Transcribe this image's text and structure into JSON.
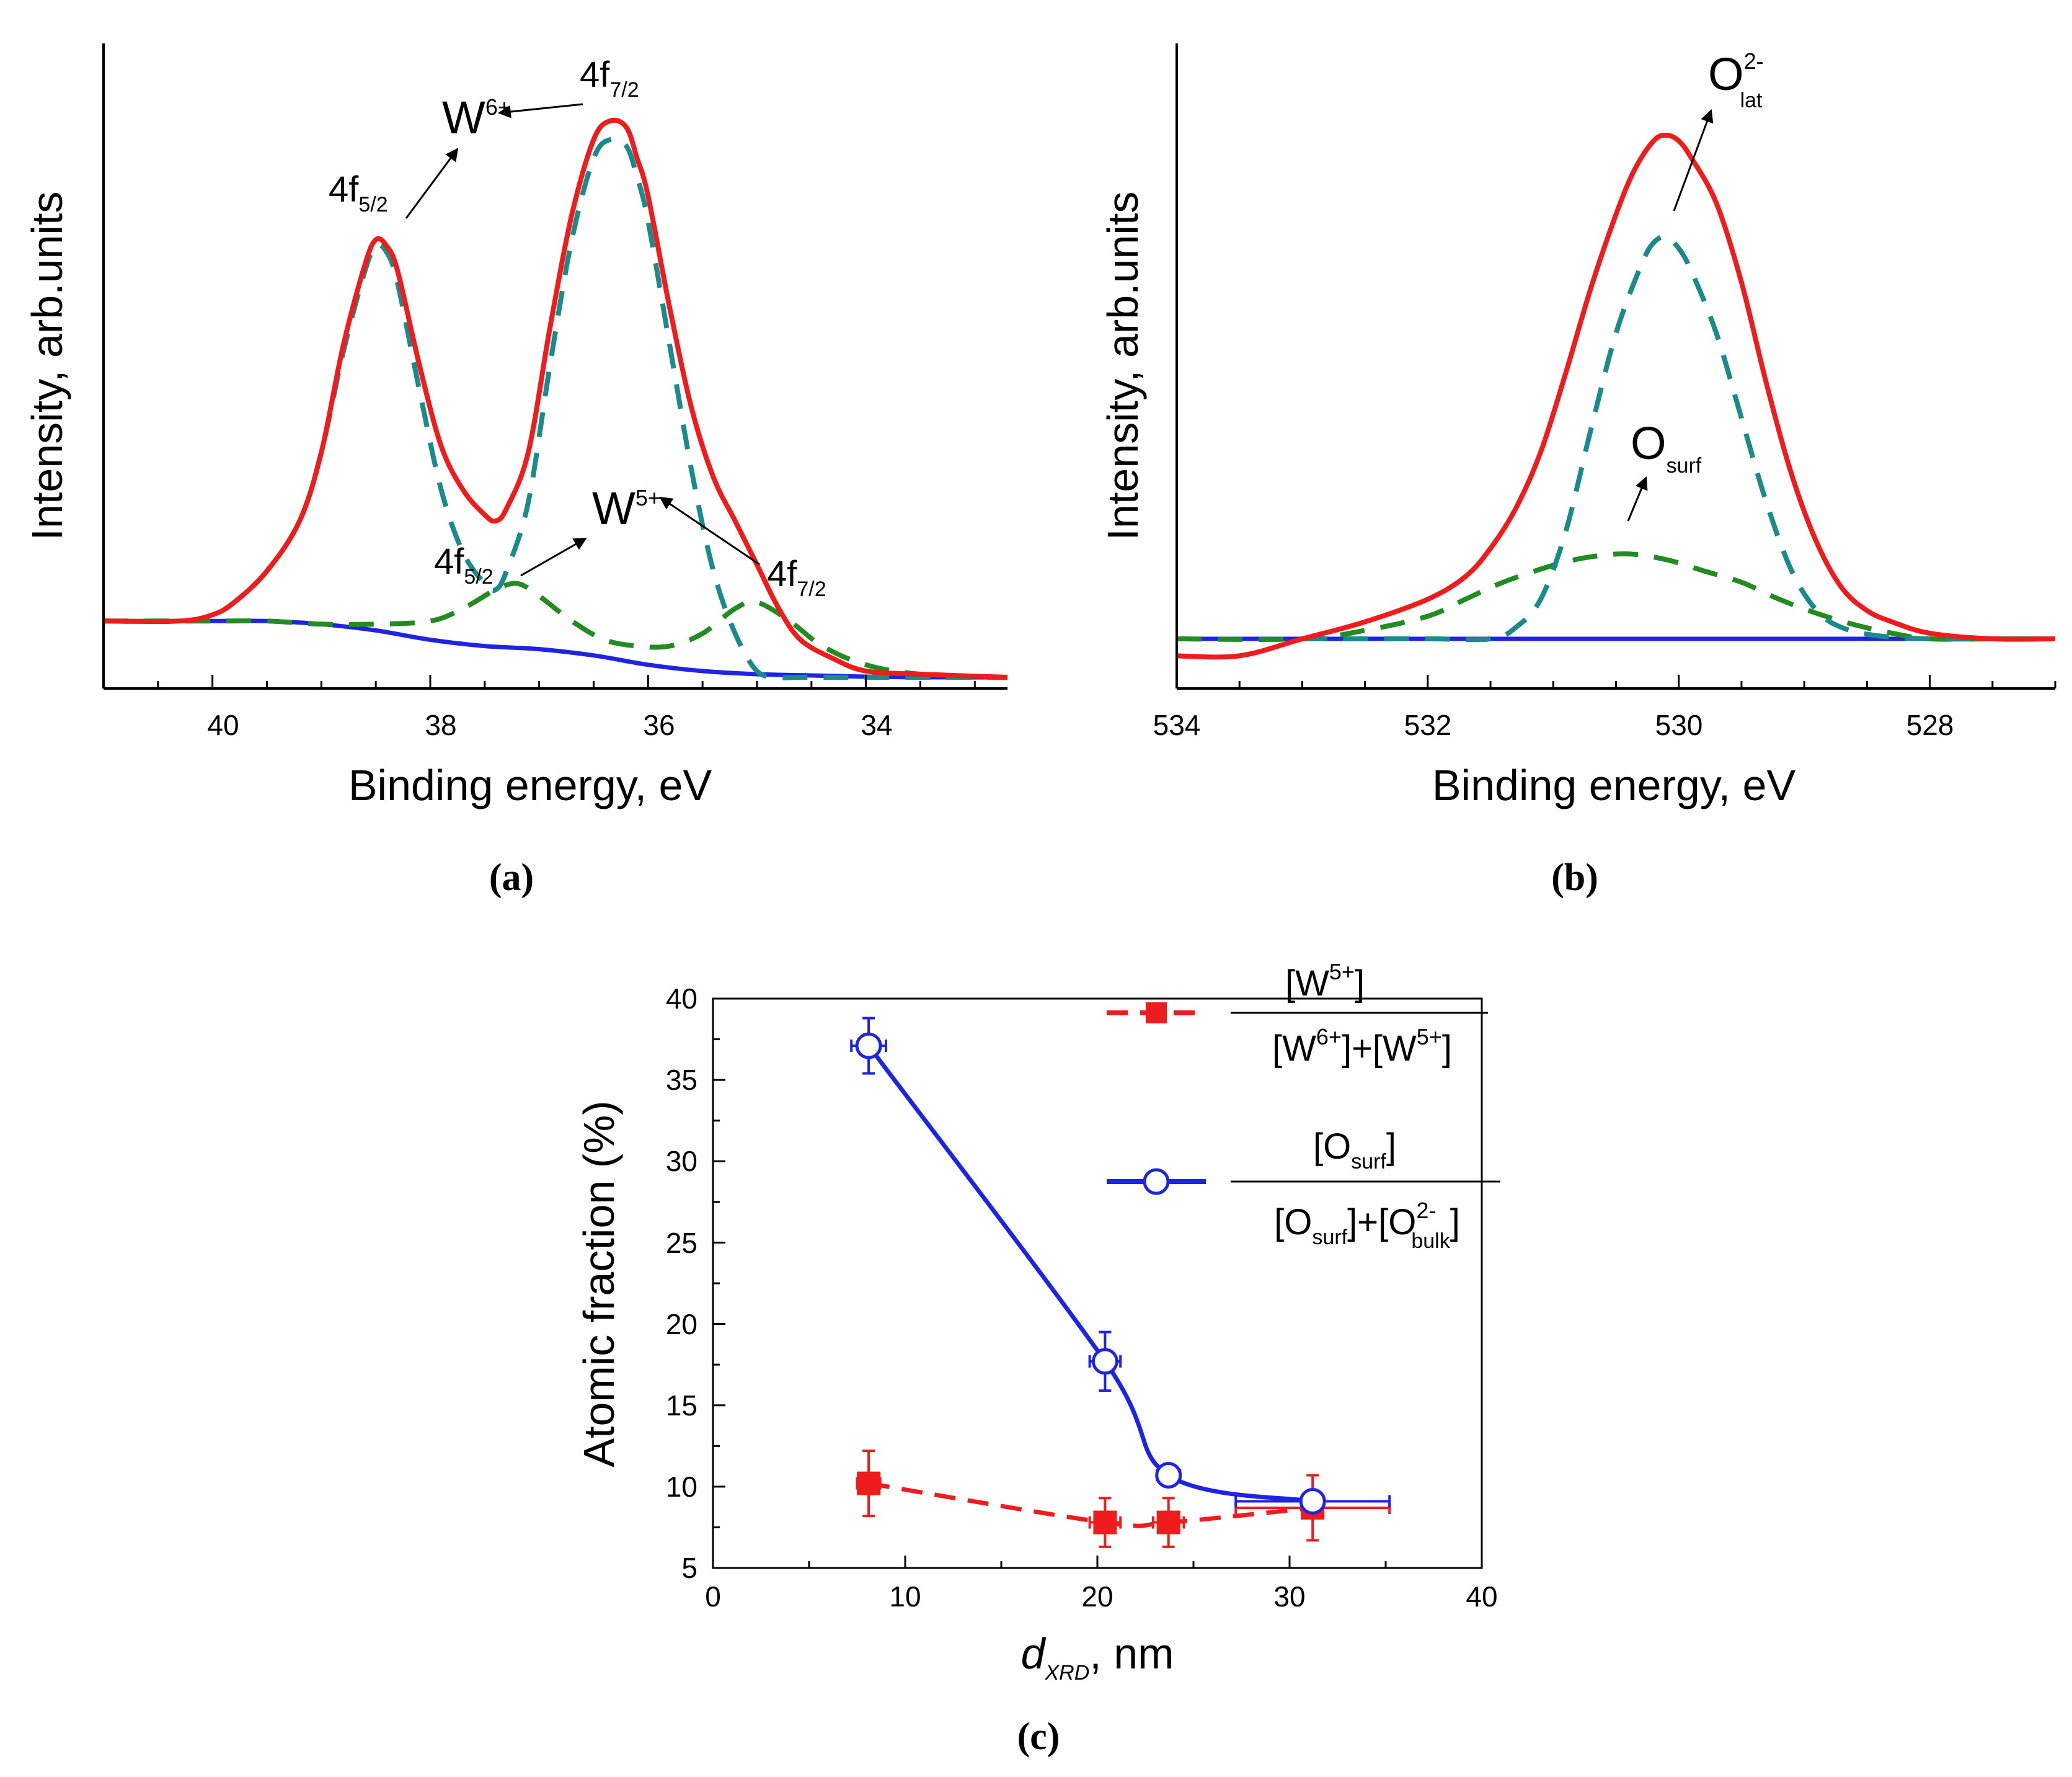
{
  "colors": {
    "envelope": "#ee1c1c",
    "w6_component": "#1a8a8a",
    "w5_component": "#228b22",
    "background": "#1f24e0",
    "w5_series": "#ee1c1c",
    "o_series": "#1f24e0"
  },
  "chart_data": [
    {
      "panel": "a",
      "panel_label": "(a)",
      "type": "line",
      "title": "",
      "xlabel": "Binding energy, eV",
      "ylabel": "Intensity, arb.units",
      "xlim": [
        41,
        32.7
      ],
      "x_reversed": true,
      "ylim": [
        0,
        1
      ],
      "xticks": [
        "40",
        "38",
        "36",
        "34"
      ],
      "annotations": {
        "w6": "W",
        "w6_sup": "6+",
        "w5": "W",
        "w5_sup": "5+",
        "f72": "4f",
        "f72_sub": "7/2",
        "f52": "4f",
        "f52_sub": "5/2"
      },
      "series": [
        {
          "name": "envelope",
          "x": [
            41,
            40.3,
            40,
            39.8,
            39.5,
            39.2,
            39,
            38.8,
            38.6,
            38.5,
            38.4,
            38.3,
            38.1,
            37.9,
            37.7,
            37.5,
            37.4,
            37.3,
            37.1,
            36.9,
            36.7,
            36.5,
            36.35,
            36.2,
            36.1,
            36,
            35.8,
            35.6,
            35.4,
            35.2,
            35,
            34.8,
            34.6,
            34.3,
            34,
            33.5,
            32.7
          ],
          "y": [
            0.09,
            0.09,
            0.1,
            0.12,
            0.17,
            0.25,
            0.36,
            0.53,
            0.66,
            0.7,
            0.69,
            0.65,
            0.5,
            0.37,
            0.3,
            0.26,
            0.25,
            0.27,
            0.36,
            0.56,
            0.74,
            0.86,
            0.89,
            0.88,
            0.83,
            0.77,
            0.59,
            0.43,
            0.32,
            0.25,
            0.18,
            0.11,
            0.06,
            0.03,
            0.01,
            0.005,
            0.0
          ]
        },
        {
          "name": "W6+ component",
          "x": [
            41,
            40.3,
            40,
            39.8,
            39.5,
            39.2,
            39,
            38.8,
            38.6,
            38.5,
            38.4,
            38.3,
            38.1,
            37.9,
            37.7,
            37.5,
            37.4,
            37.3,
            37.1,
            36.9,
            36.7,
            36.5,
            36.35,
            36.2,
            36.1,
            36,
            35.8,
            35.6,
            35.4,
            35.2,
            35,
            34.8,
            34.6,
            34.3,
            34,
            33.5,
            32.7
          ],
          "y": [
            0.09,
            0.09,
            0.1,
            0.12,
            0.17,
            0.25,
            0.36,
            0.52,
            0.65,
            0.69,
            0.68,
            0.63,
            0.46,
            0.3,
            0.2,
            0.15,
            0.14,
            0.17,
            0.28,
            0.5,
            0.7,
            0.83,
            0.86,
            0.85,
            0.8,
            0.73,
            0.53,
            0.33,
            0.17,
            0.07,
            0.01,
            0.0,
            0.0,
            0.0,
            0.0,
            0.0,
            0.0
          ]
        },
        {
          "name": "W5+ component",
          "x": [
            41,
            40,
            39.5,
            39,
            38.5,
            38,
            37.7,
            37.4,
            37.2,
            37,
            36.7,
            36.4,
            36.1,
            35.8,
            35.5,
            35.2,
            35,
            34.7,
            34.4,
            34,
            33.5,
            32.7
          ],
          "y": [
            0.09,
            0.09,
            0.09,
            0.085,
            0.085,
            0.09,
            0.11,
            0.14,
            0.15,
            0.13,
            0.09,
            0.06,
            0.05,
            0.05,
            0.07,
            0.11,
            0.12,
            0.09,
            0.05,
            0.02,
            0.005,
            0.0
          ]
        },
        {
          "name": "background",
          "x": [
            41,
            40.5,
            40,
            39.5,
            39,
            38.5,
            38,
            37.5,
            37,
            36.5,
            36,
            35.5,
            35,
            34.5,
            34,
            33.5,
            32.7
          ],
          "y": [
            0.09,
            0.09,
            0.09,
            0.09,
            0.085,
            0.075,
            0.06,
            0.05,
            0.045,
            0.035,
            0.02,
            0.01,
            0.005,
            0.003,
            0.001,
            0.0,
            0.0
          ]
        }
      ]
    },
    {
      "panel": "b",
      "panel_label": "(b)",
      "type": "line",
      "title": "",
      "xlabel": "Binding energy, eV",
      "ylabel": "Intensity, arb.units",
      "xlim": [
        534,
        527
      ],
      "x_reversed": true,
      "ylim": [
        0,
        1
      ],
      "xticks": [
        "534",
        "532",
        "530",
        "528"
      ],
      "annotations": {
        "olat": "O",
        "olat_sup": "2-",
        "olat_sub": "lat",
        "osurf": "O",
        "osurf_sub": "surf"
      },
      "series": [
        {
          "name": "envelope",
          "x": [
            534,
            533.5,
            533,
            532.5,
            532,
            531.7,
            531.5,
            531.3,
            531.1,
            530.9,
            530.7,
            530.5,
            530.35,
            530.2,
            530.1,
            530,
            529.9,
            529.7,
            529.5,
            529.3,
            529.1,
            528.9,
            528.7,
            528.5,
            528.3,
            528,
            527.5,
            527
          ],
          "y": [
            0.0,
            0.0,
            0.03,
            0.06,
            0.1,
            0.14,
            0.19,
            0.26,
            0.36,
            0.5,
            0.65,
            0.78,
            0.86,
            0.91,
            0.92,
            0.91,
            0.88,
            0.8,
            0.66,
            0.48,
            0.32,
            0.2,
            0.12,
            0.08,
            0.06,
            0.04,
            0.03,
            0.03
          ]
        },
        {
          "name": "O lattice",
          "x": [
            533,
            532,
            531.5,
            531.3,
            531.1,
            530.9,
            530.7,
            530.5,
            530.3,
            530.2,
            530.1,
            530,
            529.9,
            529.7,
            529.5,
            529.3,
            529.1,
            528.9,
            528.7,
            528.4,
            528,
            527.5,
            527
          ],
          "y": [
            0.03,
            0.03,
            0.03,
            0.05,
            0.1,
            0.22,
            0.4,
            0.57,
            0.69,
            0.73,
            0.74,
            0.72,
            0.68,
            0.57,
            0.42,
            0.27,
            0.15,
            0.08,
            0.05,
            0.035,
            0.03,
            0.03,
            0.03
          ]
        },
        {
          "name": "O surface",
          "x": [
            534,
            533,
            532.5,
            532,
            531.7,
            531.4,
            531,
            530.7,
            530.4,
            530.1,
            529.8,
            529.5,
            529.2,
            528.9,
            528.6,
            528.3,
            528,
            527.5,
            527
          ],
          "y": [
            0.03,
            0.03,
            0.045,
            0.07,
            0.1,
            0.13,
            0.16,
            0.175,
            0.18,
            0.17,
            0.15,
            0.13,
            0.1,
            0.075,
            0.055,
            0.04,
            0.03,
            0.03,
            0.03
          ]
        },
        {
          "name": "background",
          "x": [
            534,
            527
          ],
          "y": [
            0.03,
            0.03
          ]
        }
      ]
    },
    {
      "panel": "c",
      "panel_label": "(c)",
      "type": "scatter",
      "title": "",
      "xlabel_main": "d",
      "xlabel_sub": "XRD",
      "xlabel_rest": ", nm",
      "ylabel": "Atomic fraction (%)",
      "xlim": [
        0,
        40
      ],
      "ylim": [
        5,
        40
      ],
      "xticks": [
        "0",
        "10",
        "20",
        "30",
        "40"
      ],
      "yticks": [
        "5",
        "10",
        "15",
        "20",
        "25",
        "30",
        "35",
        "40"
      ],
      "legend_position": "top-right",
      "legend": {
        "w5": {
          "open": "[W",
          "sup": "5+",
          "close": "]",
          "den1": "[W",
          "den1_sup": "6+",
          "den_mid": "]+[W",
          "den2_sup": "5+",
          "den_close": "]"
        },
        "osurf": {
          "open": "[O",
          "sub": "surf",
          "close": "]",
          "den1": "[O",
          "den1_sub": "surf",
          "den_mid": "]+[O",
          "den2_sup": "2-",
          "den2_sub": "bulk",
          "den_close": "]"
        }
      },
      "series": [
        {
          "name": "[W5+]/([W6+]+[W5+])",
          "marker": "filled-square",
          "line": "dashed",
          "x": [
            8.1,
            20.4,
            23.7,
            31.2
          ],
          "y": [
            10.2,
            7.8,
            7.8,
            8.7
          ],
          "xerr": [
            0.6,
            0.8,
            0.8,
            4.0
          ],
          "yerr": [
            2.0,
            1.5,
            1.5,
            2.0
          ]
        },
        {
          "name": "[Osurf]/([Osurf]+[O2- bulk])",
          "marker": "open-circle",
          "line": "solid",
          "x": [
            8.1,
            20.4,
            23.7,
            31.2
          ],
          "y": [
            37.1,
            17.7,
            10.7,
            9.1
          ],
          "xerr": [
            0.9,
            0.8,
            0.6,
            4.0
          ],
          "yerr": [
            1.7,
            1.8,
            0.6,
            0.4
          ]
        }
      ]
    }
  ]
}
